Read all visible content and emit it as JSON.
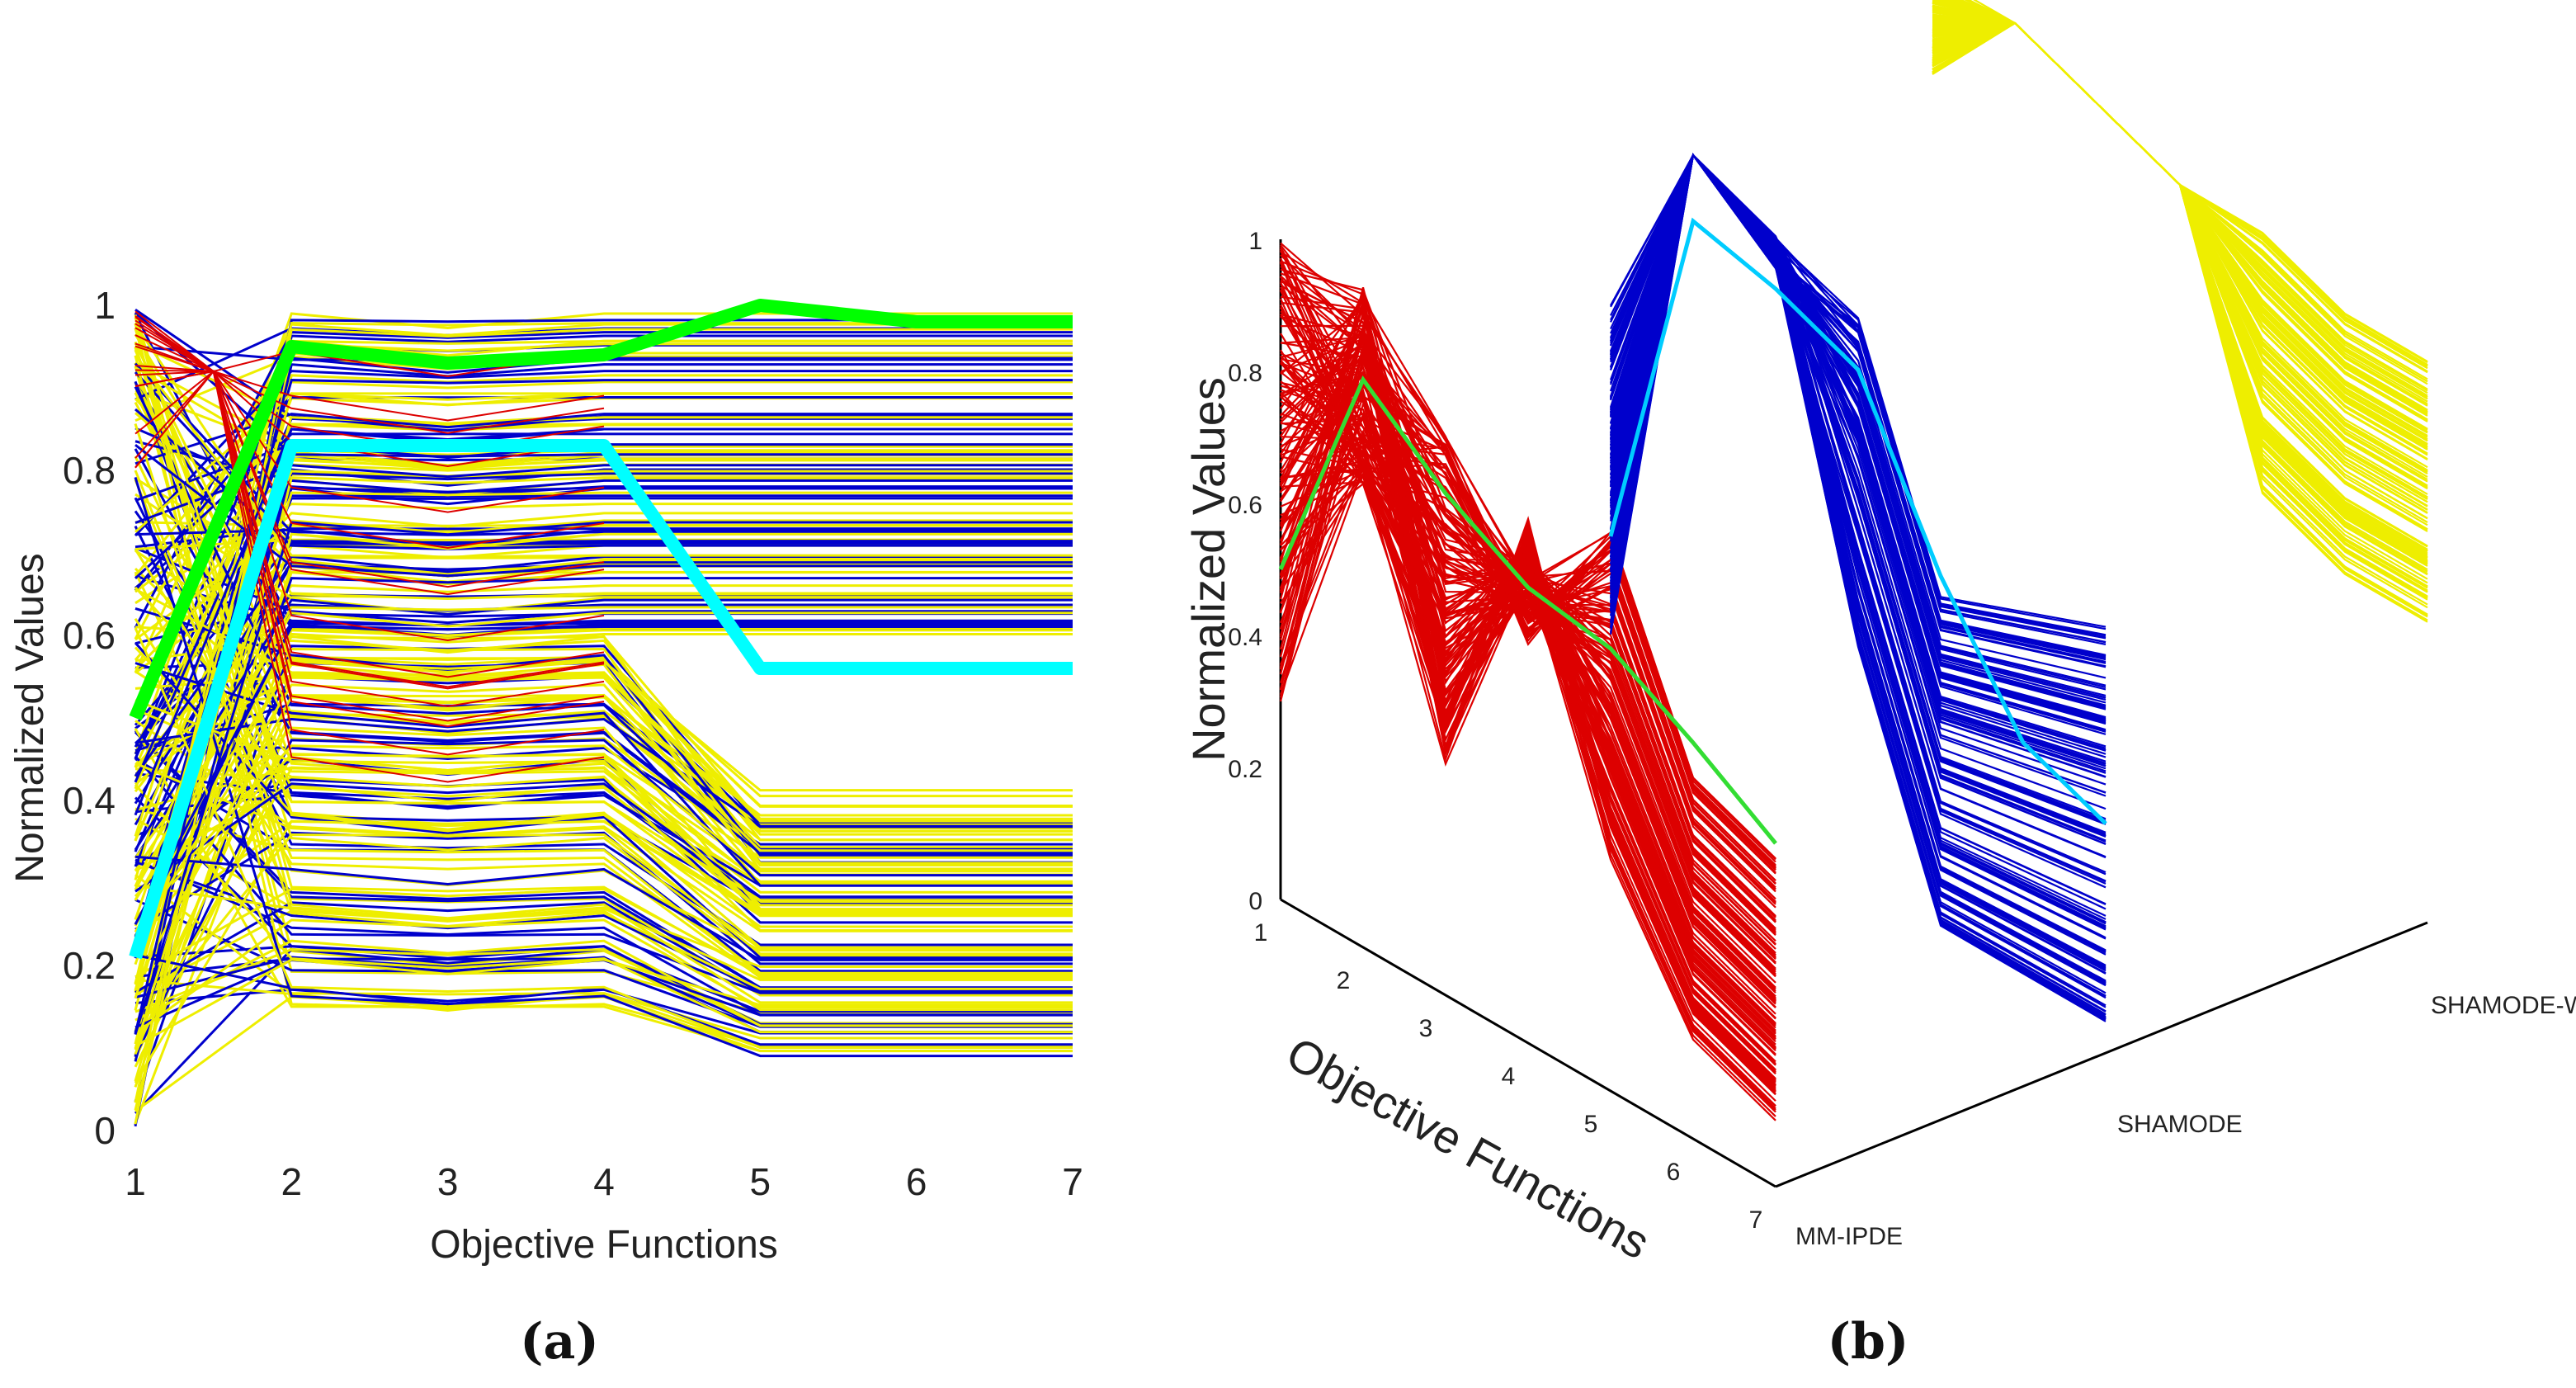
{
  "chart_data": [
    {
      "panel": "(a)",
      "type": "line",
      "xlabel": "Objective Functions",
      "ylabel": "Normalized Values",
      "x": [
        1,
        2,
        3,
        4,
        5,
        6,
        7
      ],
      "xticks": [
        "1",
        "2",
        "3",
        "4",
        "5",
        "6",
        "7"
      ],
      "yticks": [
        "0",
        "0.2",
        "0.4",
        "0.6",
        "0.8",
        "1"
      ],
      "xlim": [
        1,
        7
      ],
      "ylim": [
        0,
        1
      ],
      "series_colors": {
        "population_a": "#0000cc",
        "population_b": "#eeee00",
        "population_c": "#dd0000"
      },
      "highlight": [
        {
          "color": "#00ff00",
          "values": [
            0.5,
            0.95,
            0.93,
            0.94,
            1.0,
            0.98,
            0.98
          ]
        },
        {
          "color": "#00ffff",
          "values": [
            0.21,
            0.83,
            0.83,
            0.83,
            0.56,
            0.56,
            0.56
          ]
        }
      ]
    },
    {
      "panel": "(b)",
      "type": "line",
      "xlabel": "Objective Functions",
      "ylabel": "Normalized Values",
      "x": [
        1,
        2,
        3,
        4,
        5,
        6,
        7
      ],
      "xticks": [
        "1",
        "2",
        "3",
        "4",
        "5",
        "6",
        "7"
      ],
      "yticks": [
        "0",
        "0.2",
        "0.4",
        "0.6",
        "0.8",
        "1"
      ],
      "zticks": [
        "MM-IPDE",
        "SHAMODE",
        "SHAMODE-WO"
      ],
      "ylim": [
        0,
        1
      ],
      "layers": [
        {
          "name": "MM-IPDE",
          "color": "#dd0000",
          "highlight_color": "#33dd33",
          "highlight": [
            0.5,
            0.86,
            0.76,
            0.69,
            0.67,
            0.6,
            0.52
          ]
        },
        {
          "name": "SHAMODE",
          "color": "#0000cc",
          "highlight_color": "#00ccff",
          "highlight": [
            0.35,
            0.9,
            0.87,
            0.82,
            0.58,
            0.4,
            0.35
          ]
        },
        {
          "name": "SHAMODE-WO",
          "color": "#eeee00"
        }
      ]
    }
  ],
  "labels": {
    "panel_a": "(a)",
    "panel_b": "(b)"
  }
}
